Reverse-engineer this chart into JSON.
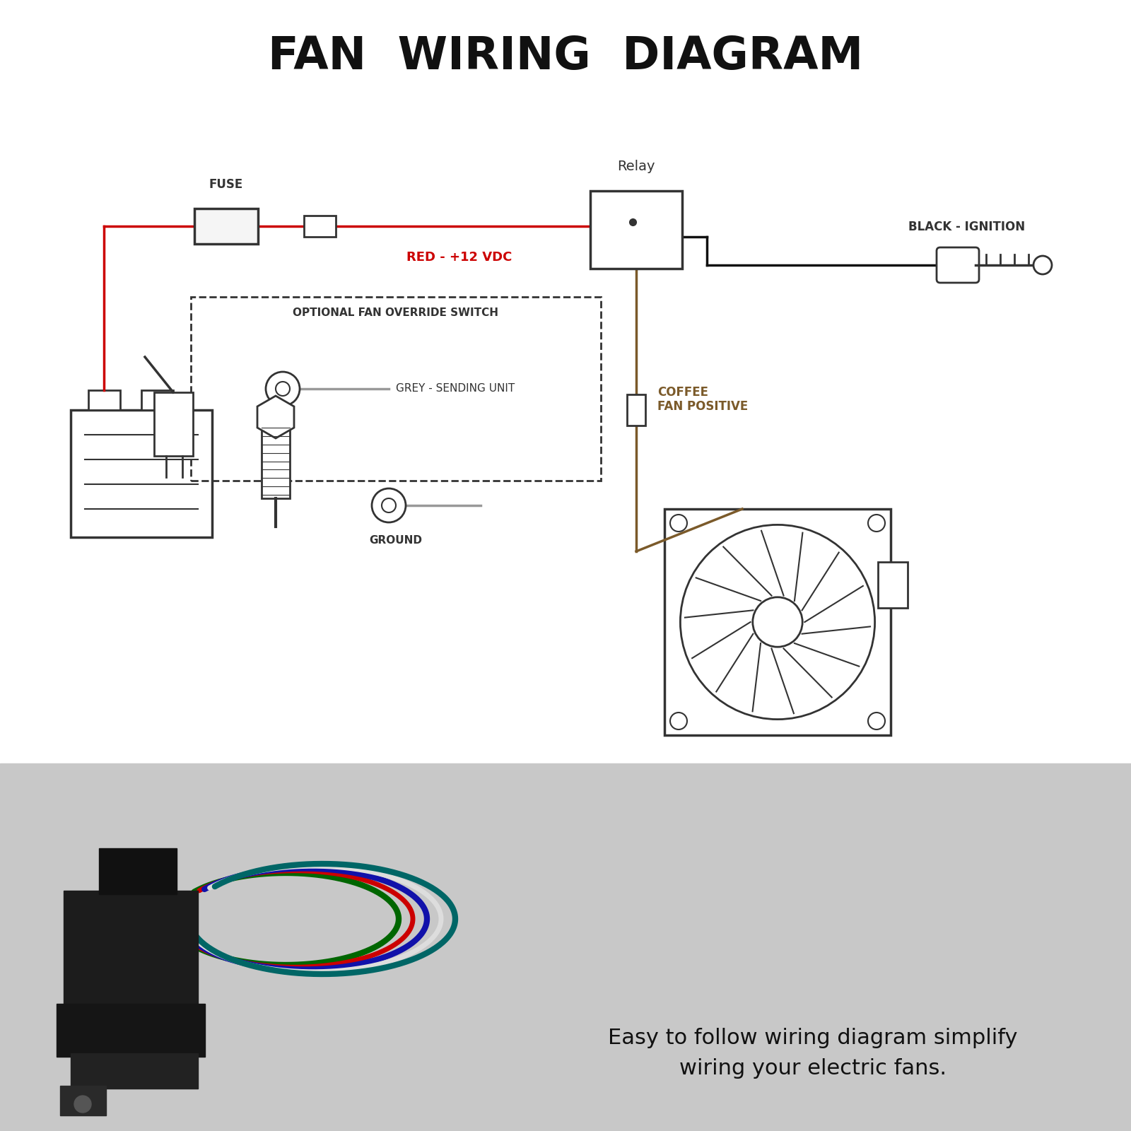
{
  "title": "FAN  WIRING  DIAGRAM",
  "title_fontsize": 46,
  "bg_color_top": "#ffffff",
  "bg_color_bottom": "#cccccc",
  "subtitle_line1": "Easy to follow wiring diagram simplify",
  "subtitle_line2": "wiring your electric fans.",
  "subtitle_fontsize": 22,
  "label_red": "RED - +12 VDC",
  "label_black": "BLACK - IGNITION",
  "label_coffee": "COFFEE\nFAN POSITIVE",
  "label_grey": "GREY - SENDING UNIT",
  "label_ground": "GROUND",
  "label_relay": "Relay",
  "label_fuse": "FUSE",
  "label_optional": "OPTIONAL FAN OVERRIDE SWITCH",
  "wire_red": "#cc0000",
  "wire_black": "#111111",
  "wire_coffee": "#7b5a2a",
  "wire_grey": "#999999",
  "diagram_color": "#333333",
  "line_width": 2.5
}
